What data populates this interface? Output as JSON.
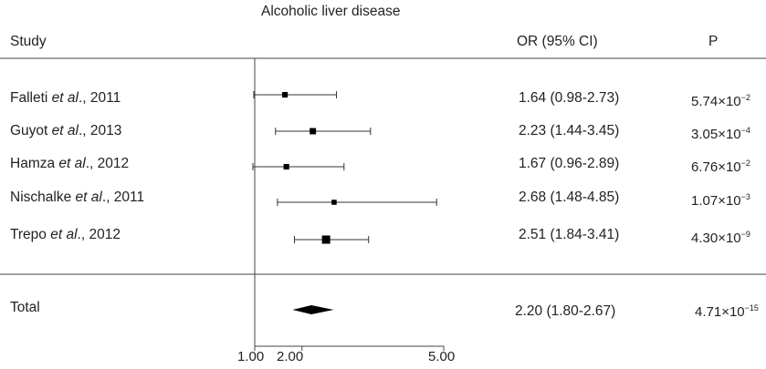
{
  "title": "Alcoholic liver disease",
  "columns": {
    "study": "Study",
    "or": "OR (95% CI)",
    "p": "P"
  },
  "rows": [
    {
      "author": "Falleti",
      "etal": "et al",
      "suffix": "., 2011",
      "or_text": "1.64 (0.98-2.73)",
      "p_mant": "5.74",
      "p_exp": "−2"
    },
    {
      "author": "Guyot",
      "etal": "et al",
      "suffix": "., 2013",
      "or_text": "2.23 (1.44-3.45)",
      "p_mant": "3.05",
      "p_exp": "−4"
    },
    {
      "author": "Hamza",
      "etal": "et al",
      "suffix": "., 2012",
      "or_text": "1.67 (0.96-2.89)",
      "p_mant": "6.76",
      "p_exp": "−2"
    },
    {
      "author": "Nischalke",
      "etal": "et al",
      "suffix": "., 2011",
      "or_text": "2.68 (1.48-4.85)",
      "p_mant": "1.07",
      "p_exp": "−3"
    },
    {
      "author": "Trepo",
      "etal": "et al",
      "suffix": "., 2012",
      "or_text": "2.51 (1.84-3.41)",
      "p_mant": "4.30",
      "p_exp": "−9"
    }
  ],
  "total": {
    "label": "Total",
    "or_text": "2.20 (1.80-2.67)",
    "p_mant": "4.71",
    "p_exp": "−15"
  },
  "axis": {
    "ticks": [
      "1.00",
      "2.00",
      "5.00"
    ]
  },
  "chart_data": {
    "type": "forest",
    "title": "Alcoholic liver disease",
    "xlabel": "",
    "ylabel": "",
    "x_ticks": [
      1.0,
      2.0,
      5.0
    ],
    "xlim": [
      1.0,
      5.0
    ],
    "reference_line": 1.0,
    "studies": [
      {
        "name": "Falleti et al., 2011",
        "or": 1.64,
        "lower": 0.98,
        "upper": 2.73,
        "p": 0.0574,
        "weight": 0.12
      },
      {
        "name": "Guyot et al., 2013",
        "or": 2.23,
        "lower": 1.44,
        "upper": 3.45,
        "p": 0.000305,
        "weight": 0.19
      },
      {
        "name": "Hamza et al., 2012",
        "or": 1.67,
        "lower": 0.96,
        "upper": 2.89,
        "p": 0.0676,
        "weight": 0.12
      },
      {
        "name": "Nischalke et al., 2011",
        "or": 2.68,
        "lower": 1.48,
        "upper": 4.85,
        "p": 0.00107,
        "weight": 0.08
      },
      {
        "name": "Trepo et al., 2012",
        "or": 2.51,
        "lower": 1.84,
        "upper": 3.41,
        "p": 4.3e-09,
        "weight": 0.45
      }
    ],
    "total": {
      "name": "Total",
      "or": 2.2,
      "lower": 1.8,
      "upper": 2.67,
      "p": 4.71e-15
    }
  }
}
